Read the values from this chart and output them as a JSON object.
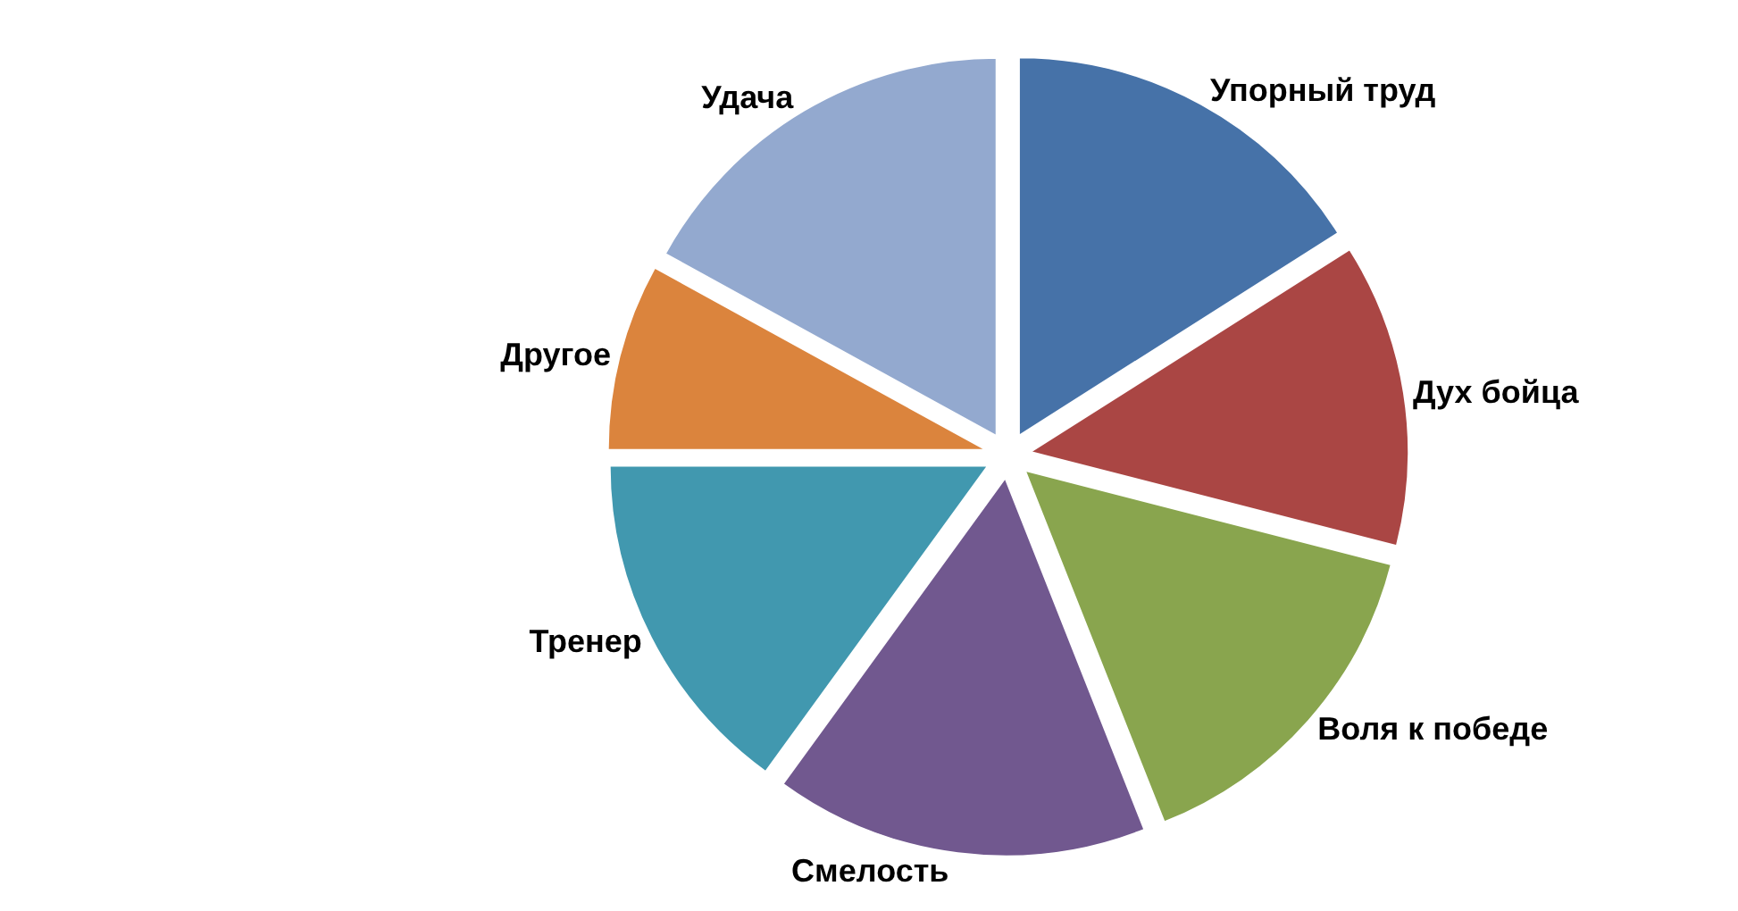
{
  "chart_data": {
    "type": "pie",
    "categories": [
      "Упорный труд",
      "Дух бойца",
      "Воля к победе",
      "Смелость",
      "Тренер",
      "Другое",
      "Удача"
    ],
    "values": [
      16,
      13,
      15,
      16,
      15,
      8,
      17
    ],
    "colors": [
      "#4672a8",
      "#aa4644",
      "#89a54e",
      "#71588f",
      "#4198af",
      "#db843d",
      "#93a9cf"
    ],
    "legend": false
  }
}
